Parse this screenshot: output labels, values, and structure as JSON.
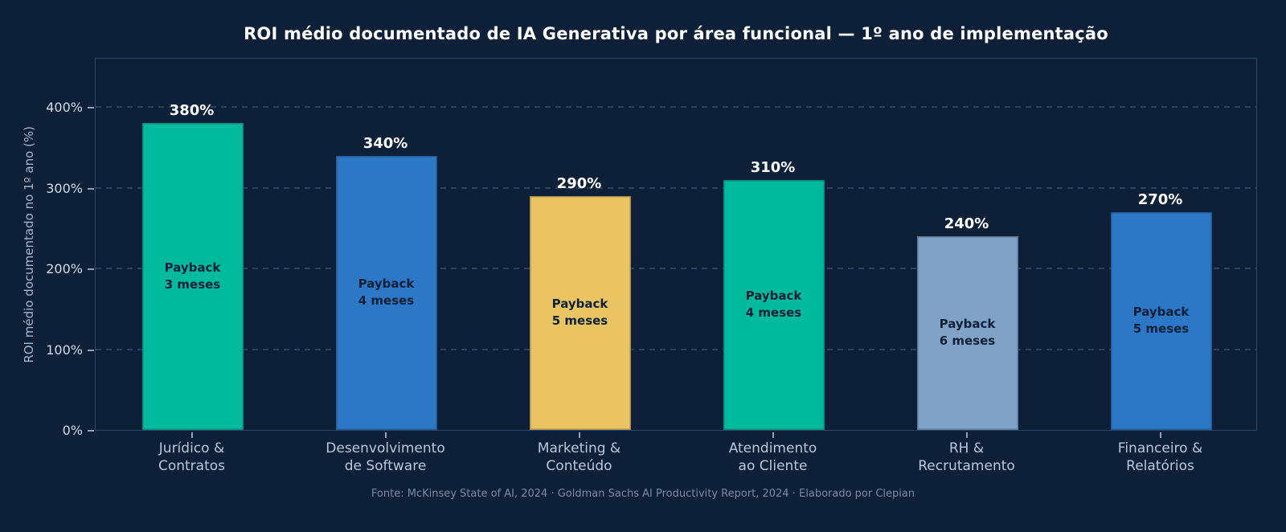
{
  "chart_data": {
    "type": "bar",
    "title": "ROI médio documentado de IA Generativa por área funcional — 1º ano de implementação",
    "xlabel": "",
    "ylabel": "ROI médio documentado no 1º ano (%)",
    "categories": [
      {
        "id": "juridico-contratos",
        "label": "Jurídico &\nContratos"
      },
      {
        "id": "desenvolvimento-software",
        "label": "Desenvolvimento\nde Software"
      },
      {
        "id": "marketing-conteudo",
        "label": "Marketing &\nConteúdo"
      },
      {
        "id": "atendimento-cliente",
        "label": "Atendimento\nao Cliente"
      },
      {
        "id": "rh-recrutamento",
        "label": "RH &\nRecrutamento"
      },
      {
        "id": "financeiro-relatorios",
        "label": "Financeiro &\nRelatórios"
      }
    ],
    "values": [
      380,
      340,
      290,
      310,
      240,
      270
    ],
    "value_labels": [
      "380%",
      "340%",
      "290%",
      "310%",
      "240%",
      "270%"
    ],
    "payback_labels": [
      "Payback\n3 meses",
      "Payback\n4 meses",
      "Payback\n5 meses",
      "Payback\n4 meses",
      "Payback\n6 meses",
      "Payback\n5 meses"
    ],
    "bar_colors": [
      "#00ba9d",
      "#2c77c6",
      "#eac363",
      "#00ba9d",
      "#7fa2c6",
      "#2c77c6"
    ],
    "y_axis": {
      "ticks": [
        {
          "value": 0,
          "label": "0%"
        },
        {
          "value": 100,
          "label": "100%"
        },
        {
          "value": 200,
          "label": "200%"
        },
        {
          "value": 300,
          "label": "300%"
        },
        {
          "value": 400,
          "label": "400%"
        }
      ],
      "ylim": [
        0,
        462
      ]
    },
    "grid": "horizontal-dashed",
    "legend": "none"
  },
  "footer": {
    "text": "Fonte: McKinsey State of AI, 2024 · Goldman Sachs AI Productivity Report, 2024 · Elaborado por Clepian"
  },
  "palette": {
    "background": "#0d2037",
    "plot_border": "#2b486b",
    "gridline": "#2c4160",
    "title_text": "#ffffff",
    "value_label_text": "#ffffff",
    "payback_text": "#0e2138",
    "x_tick_text": "#bac7da",
    "y_tick_text": "#d3dce8",
    "axis_label_text": "#a3b4d0",
    "footer_text": "#778ba6",
    "teal": "#00ba9d",
    "blue": "#2c77c6",
    "gold": "#eac363",
    "slate": "#7fa2c6"
  }
}
